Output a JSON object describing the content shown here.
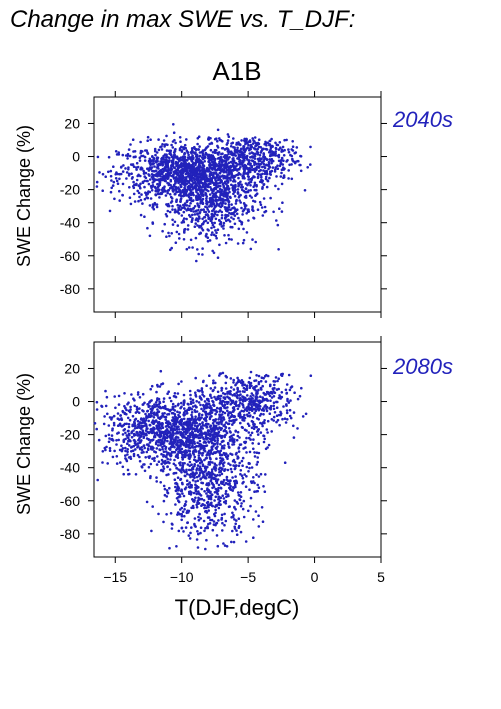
{
  "page_title": "Change in max SWE vs. T_DJF:",
  "chart_data": {
    "type": "scatter",
    "title": "A1B",
    "xlabel": "T(DJF,degC)",
    "ylabel": "SWE Change (%)",
    "xlim": [
      -16.6,
      5
    ],
    "ylim": [
      -94,
      36
    ],
    "xticks": [
      -15,
      -10,
      -5,
      0,
      5
    ],
    "yticks": [
      20,
      0,
      -20,
      -40,
      -60,
      -80
    ],
    "grid": false,
    "marker_color": "#2222bb",
    "panels": [
      {
        "label": "2040s",
        "clusters": [
          {
            "cx": -9.5,
            "cy": -10,
            "sx": 2.6,
            "sy": 9,
            "n": 1300,
            "xmin": -16.6,
            "xmax": -0.2,
            "ymin": -80,
            "ymax": 20
          },
          {
            "cx": -7.8,
            "cy": -28,
            "sx": 1.8,
            "sy": 13,
            "n": 600,
            "xmin": -13,
            "xmax": -2,
            "ymin": -80,
            "ymax": 12
          },
          {
            "cx": -4.8,
            "cy": 0,
            "sx": 1.8,
            "sy": 8,
            "n": 450,
            "xmin": -8.5,
            "xmax": -0.2,
            "ymin": -70,
            "ymax": 12
          }
        ]
      },
      {
        "label": "2080s",
        "clusters": [
          {
            "cx": -10.5,
            "cy": -18,
            "sx": 2.6,
            "sy": 11,
            "n": 1300,
            "xmin": -16.6,
            "xmax": -0.2,
            "ymin": -90,
            "ymax": 20
          },
          {
            "cx": -8.0,
            "cy": -50,
            "sx": 1.8,
            "sy": 16,
            "n": 700,
            "xmin": -13,
            "xmax": -2,
            "ymin": -90,
            "ymax": 10
          },
          {
            "cx": -5.0,
            "cy": 0,
            "sx": 1.9,
            "sy": 9,
            "n": 500,
            "xmin": -9,
            "xmax": 0,
            "ymin": -75,
            "ymax": 18
          }
        ]
      }
    ]
  }
}
